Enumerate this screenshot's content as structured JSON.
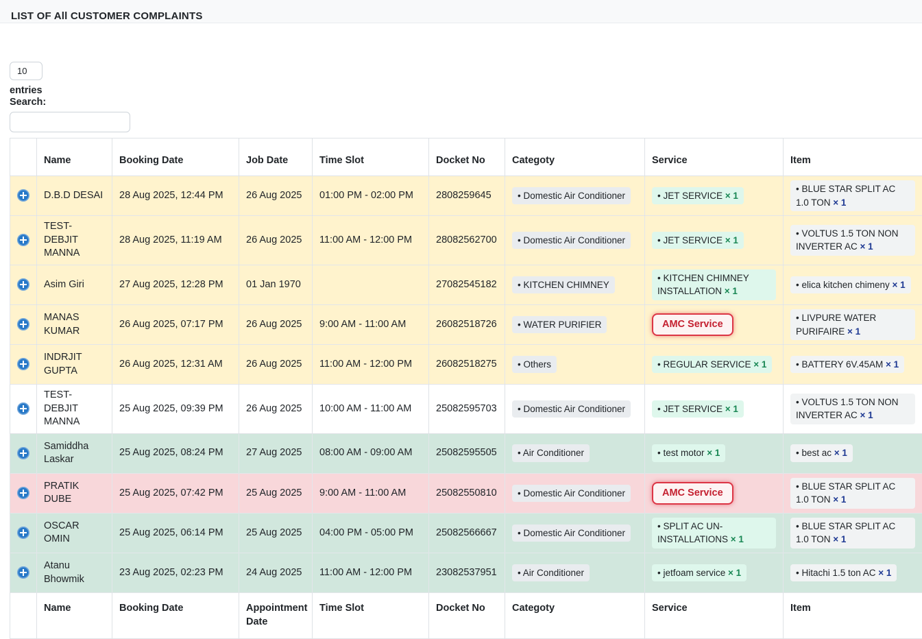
{
  "page": {
    "title": "LIST OF All CUSTOMER COMPLAINTS"
  },
  "toolbar": {
    "page_length_value": "10",
    "entries_label": "entries",
    "search_label": "Search:",
    "search_value": ""
  },
  "symbols": {
    "bullet": "•",
    "times": "×"
  },
  "colors": {
    "row_warning": "#fff3cd",
    "row_success": "#d1e7dd",
    "row_danger": "#f8d7da",
    "row_white": "#ffffff",
    "badge_category_bg": "#e9ecef",
    "badge_service_bg": "#def7ec",
    "badge_item_bg": "#f1f3f4",
    "qty_green": "#198754",
    "qty_navy": "#1f3a93",
    "amc_text_red": "#c42030",
    "amc_border_red": "#dc3545",
    "expand_button_blue": "#2879c8"
  },
  "table": {
    "headers": [
      "",
      "Name",
      "Booking Date",
      "Job Date",
      "Time Slot",
      "Docket No",
      "Categoty",
      "Service",
      "Item"
    ],
    "footer_headers": [
      "",
      "Name",
      "Booking Date",
      "Appointment Date",
      "Time Slot",
      "Docket No",
      "Categoty",
      "Service",
      "Item"
    ],
    "rows": [
      {
        "color": "warning",
        "name": "D.B.D DESAI",
        "booking": "28 Aug 2025, 12:44 PM",
        "job": "26 Aug 2025",
        "slot": "01:00 PM - 02:00 PM",
        "docket": "2808259645",
        "category": "Domestic Air Conditioner",
        "service": {
          "amc": false,
          "label": "JET SERVICE",
          "qty": "1"
        },
        "item": {
          "label": "BLUE STAR SPLIT AC 1.0 TON",
          "qty": "1"
        }
      },
      {
        "color": "warning",
        "name": "TEST-DEBJIT MANNA",
        "booking": "28 Aug 2025, 11:19 AM",
        "job": "26 Aug 2025",
        "slot": "11:00 AM - 12:00 PM",
        "docket": "28082562700",
        "category": "Domestic Air Conditioner",
        "service": {
          "amc": false,
          "label": "JET SERVICE",
          "qty": "1"
        },
        "item": {
          "label": "VOLTUS 1.5 TON NON INVERTER AC",
          "qty": "1"
        }
      },
      {
        "color": "warning",
        "name": "Asim Giri",
        "booking": "27 Aug 2025, 12:28 PM",
        "job": "01 Jan 1970",
        "slot": "",
        "docket": "27082545182",
        "category": "KITCHEN CHIMNEY",
        "service": {
          "amc": false,
          "label": "KITCHEN CHIMNEY INSTALLATION",
          "qty": "1"
        },
        "item": {
          "label": "elica kitchen chimeny",
          "qty": "1"
        }
      },
      {
        "color": "warning",
        "name": "MANAS KUMAR",
        "booking": "26 Aug 2025, 07:17 PM",
        "job": "26 Aug 2025",
        "slot": "9:00 AM - 11:00 AM",
        "docket": "26082518726",
        "category": "WATER PURIFIER",
        "service": {
          "amc": true,
          "label": "AMC Service"
        },
        "item": {
          "label": "LIVPURE WATER PURIFAIRE",
          "qty": "1"
        }
      },
      {
        "color": "warning",
        "name": "INDRJIT GUPTA",
        "booking": "26 Aug 2025, 12:31 AM",
        "job": "26 Aug 2025",
        "slot": "11:00 AM - 12:00 PM",
        "docket": "26082518275",
        "category": "Others",
        "service": {
          "amc": false,
          "label": "REGULAR SERVICE",
          "qty": "1"
        },
        "item": {
          "label": "BATTERY 6V.45AM",
          "qty": "1"
        }
      },
      {
        "color": "white",
        "name": "TEST-DEBJIT MANNA",
        "booking": "25 Aug 2025, 09:39 PM",
        "job": "26 Aug 2025",
        "slot": "10:00 AM - 11:00 AM",
        "docket": "25082595703",
        "category": "Domestic Air Conditioner",
        "service": {
          "amc": false,
          "label": "JET SERVICE",
          "qty": "1"
        },
        "item": {
          "label": "VOLTUS 1.5 TON NON INVERTER AC",
          "qty": "1"
        }
      },
      {
        "color": "success",
        "name": "Samiddha Laskar",
        "booking": "25 Aug 2025, 08:24 PM",
        "job": "27 Aug 2025",
        "slot": "08:00 AM - 09:00 AM",
        "docket": "25082595505",
        "category": "Air Conditioner",
        "service": {
          "amc": false,
          "label": "test motor",
          "qty": "1"
        },
        "item": {
          "label": "best ac",
          "qty": "1"
        }
      },
      {
        "color": "danger",
        "name": "PRATIK DUBE",
        "booking": "25 Aug 2025, 07:42 PM",
        "job": "25 Aug 2025",
        "slot": "9:00 AM - 11:00 AM",
        "docket": "25082550810",
        "category": "Domestic Air Conditioner",
        "service": {
          "amc": true,
          "label": "AMC Service"
        },
        "item": {
          "label": "BLUE STAR SPLIT AC 1.0 TON",
          "qty": "1"
        }
      },
      {
        "color": "success",
        "name": "OSCAR OMIN",
        "booking": "25 Aug 2025, 06:14 PM",
        "job": "25 Aug 2025",
        "slot": "04:00 PM - 05:00 PM",
        "docket": "25082566667",
        "category": "Domestic Air Conditioner",
        "service": {
          "amc": false,
          "label": "SPLIT AC UN-INSTALLATIONS",
          "qty": "1"
        },
        "item": {
          "label": "BLUE STAR SPLIT AC 1.0 TON",
          "qty": "1"
        }
      },
      {
        "color": "success",
        "name": "Atanu Bhowmik",
        "booking": "23 Aug 2025, 02:23 PM",
        "job": "24 Aug 2025",
        "slot": "11:00 AM - 12:00 PM",
        "docket": "23082537951",
        "category": "Air Conditioner",
        "service": {
          "amc": false,
          "label": "jetfoam service",
          "qty": "1"
        },
        "item": {
          "label": "Hitachi 1.5 ton AC",
          "qty": "1"
        }
      }
    ]
  }
}
